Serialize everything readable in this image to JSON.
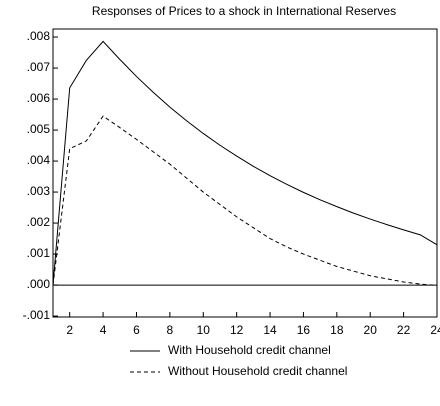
{
  "chart_data": {
    "type": "line",
    "title": "Responses of Prices to a shock in International Reserves",
    "x": [
      1,
      2,
      3,
      4,
      5,
      6,
      7,
      8,
      9,
      10,
      11,
      12,
      13,
      14,
      15,
      16,
      17,
      18,
      19,
      20,
      21,
      22,
      23,
      24
    ],
    "series": [
      {
        "name": "With Household credit channel",
        "color": "#000000",
        "linestyle": "solid",
        "values": [
          0,
          0.00636,
          0.00725,
          0.00786,
          0.00728,
          0.00673,
          0.00622,
          0.00574,
          0.0053,
          0.00489,
          0.00451,
          0.00416,
          0.00383,
          0.00353,
          0.00325,
          0.00299,
          0.00275,
          0.00253,
          0.00232,
          0.00213,
          0.00195,
          0.00178,
          0.00162,
          0.0013
        ]
      },
      {
        "name": "Without Household credit channel",
        "color": "#000000",
        "linestyle": "dashed",
        "values": [
          0,
          0.0044,
          0.00465,
          0.00545,
          0.00508,
          0.0047,
          0.0043,
          0.0039,
          0.00345,
          0.003,
          0.0026,
          0.0022,
          0.00185,
          0.0015,
          0.00123,
          0.001,
          0.0008,
          0.0006,
          0.00045,
          0.0003,
          0.0002,
          0.0001,
          3e-05,
          -1e-05
        ]
      }
    ],
    "xlim": [
      1,
      24
    ],
    "xticks": [
      2,
      4,
      6,
      8,
      10,
      12,
      14,
      16,
      18,
      20,
      22,
      24
    ],
    "ylim": [
      -0.00103,
      0.00826
    ],
    "yticks": [
      {
        "value": 0.008,
        "label": ".008"
      },
      {
        "value": 0.007,
        "label": ".007"
      },
      {
        "value": 0.006,
        "label": ".006"
      },
      {
        "value": 0.005,
        "label": ".005"
      },
      {
        "value": 0.004,
        "label": ".004"
      },
      {
        "value": 0.003,
        "label": ".003"
      },
      {
        "value": 0.002,
        "label": ".002"
      },
      {
        "value": 0.001,
        "label": ".001"
      },
      {
        "value": 0,
        "label": ".000"
      },
      {
        "value": -0.001,
        "label": "-.001"
      }
    ],
    "zero_line": true,
    "legend": "bottom"
  }
}
